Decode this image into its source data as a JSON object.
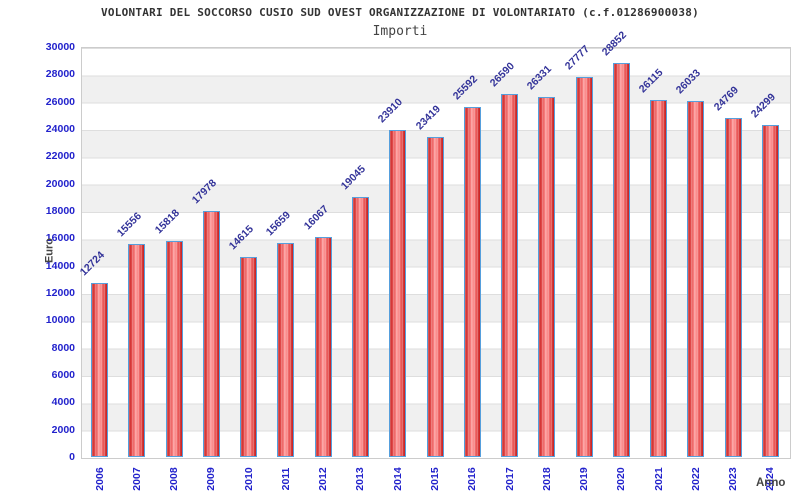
{
  "header": {
    "title": "VOLONTARI DEL SOCCORSO CUSIO SUD OVEST ORGANIZZAZIONE DI VOLONTARIATO (c.f.01286900038)",
    "subtitle": "Importi"
  },
  "axes": {
    "y_title": "Euro",
    "x_title": "Anno"
  },
  "colors": {
    "bar_fill_edge": "#c42020",
    "bar_fill_center": "#ff9e9e",
    "bar_border": "#559fdd",
    "tick_label": "#2222cc",
    "value_label": "#333399",
    "band_gray": "#f0f0f0",
    "plot_border": "#cccccc",
    "title_text": "#333333"
  },
  "chart_data": {
    "type": "bar",
    "title": "VOLONTARI DEL SOCCORSO CUSIO SUD OVEST ORGANIZZAZIONE DI VOLONTARIATO (c.f.01286900038)",
    "subtitle": "Importi",
    "xlabel": "Anno",
    "ylabel": "Euro",
    "categories": [
      "2006",
      "2007",
      "2008",
      "2009",
      "2010",
      "2011",
      "2012",
      "2013",
      "2014",
      "2015",
      "2016",
      "2017",
      "2018",
      "2019",
      "2020",
      "2021",
      "2022",
      "2023",
      "2024"
    ],
    "values": [
      12724,
      15556,
      15818,
      17978,
      14615,
      15659,
      16067,
      19045,
      23910,
      23419,
      25592,
      26590,
      26331,
      27777,
      28852,
      26115,
      26033,
      24769,
      24299
    ],
    "ylim": [
      0,
      30000
    ],
    "yticks": [
      0,
      2000,
      4000,
      6000,
      8000,
      10000,
      12000,
      14000,
      16000,
      18000,
      20000,
      22000,
      24000,
      26000,
      28000,
      30000
    ],
    "legend": "none",
    "grid": "horizontal-bands",
    "value_labels_rotation_deg": -45,
    "x_labels_rotation_deg": -90
  }
}
